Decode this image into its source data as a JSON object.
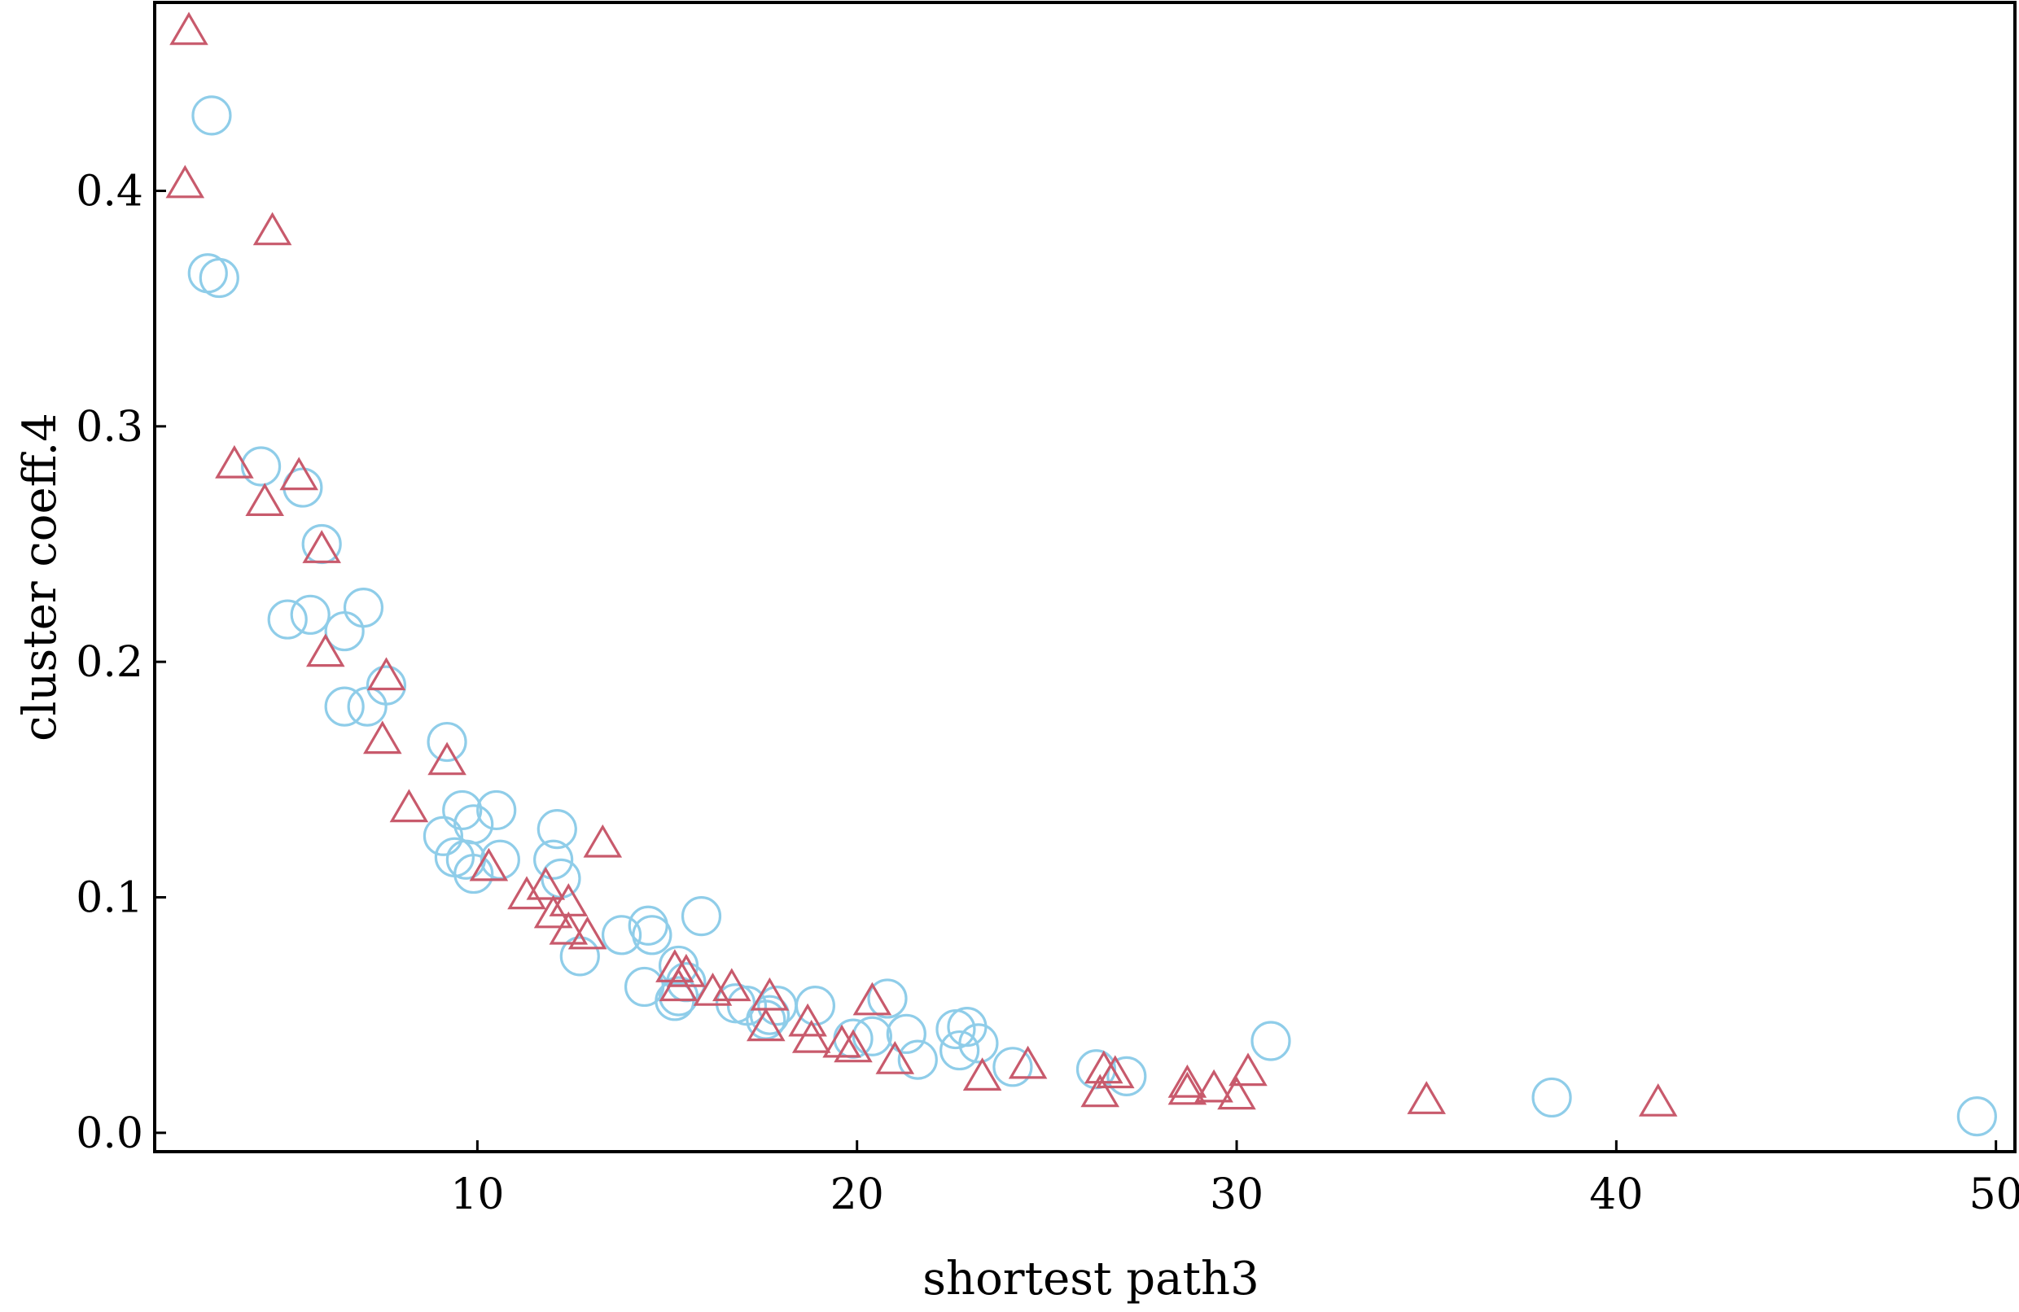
{
  "chart_data": {
    "type": "scatter",
    "xlabel": "shortest path3",
    "ylabel": "cluster coeff.4",
    "xlim": [
      1.5,
      50.5
    ],
    "ylim": [
      -0.008,
      0.48
    ],
    "xticks": [
      10,
      20,
      30,
      40,
      50
    ],
    "yticks": [
      0.0,
      0.1,
      0.2,
      0.3,
      0.4
    ],
    "ytick_labels": [
      "0.0",
      "0.1",
      "0.2",
      "0.3",
      "0.4"
    ],
    "grid": false,
    "series": [
      {
        "marker": "circle",
        "color": "#8fcde9",
        "points": [
          [
            3.0,
            0.432
          ],
          [
            2.9,
            0.365
          ],
          [
            3.2,
            0.363
          ],
          [
            4.3,
            0.283
          ],
          [
            5.4,
            0.274
          ],
          [
            5.9,
            0.25
          ],
          [
            5.0,
            0.218
          ],
          [
            5.6,
            0.22
          ],
          [
            6.5,
            0.213
          ],
          [
            7.0,
            0.223
          ],
          [
            6.5,
            0.181
          ],
          [
            7.1,
            0.181
          ],
          [
            7.6,
            0.19
          ],
          [
            9.2,
            0.166
          ],
          [
            9.1,
            0.126
          ],
          [
            9.6,
            0.137
          ],
          [
            9.9,
            0.131
          ],
          [
            9.4,
            0.117
          ],
          [
            9.7,
            0.116
          ],
          [
            9.9,
            0.11
          ],
          [
            10.5,
            0.137
          ],
          [
            10.6,
            0.116
          ],
          [
            12.1,
            0.129
          ],
          [
            12.0,
            0.116
          ],
          [
            12.2,
            0.108
          ],
          [
            13.8,
            0.084
          ],
          [
            14.5,
            0.088
          ],
          [
            14.6,
            0.084
          ],
          [
            12.7,
            0.075
          ],
          [
            14.4,
            0.062
          ],
          [
            15.9,
            0.092
          ],
          [
            15.3,
            0.071
          ],
          [
            15.5,
            0.064
          ],
          [
            15.3,
            0.058
          ],
          [
            15.2,
            0.056
          ],
          [
            16.8,
            0.055
          ],
          [
            17.1,
            0.054
          ],
          [
            17.9,
            0.054
          ],
          [
            17.7,
            0.05
          ],
          [
            17.6,
            0.048
          ],
          [
            18.9,
            0.054
          ],
          [
            19.9,
            0.04
          ],
          [
            20.4,
            0.041
          ],
          [
            20.8,
            0.057
          ],
          [
            21.3,
            0.042
          ],
          [
            21.6,
            0.031
          ],
          [
            22.6,
            0.044
          ],
          [
            22.9,
            0.045
          ],
          [
            23.2,
            0.038
          ],
          [
            22.7,
            0.035
          ],
          [
            24.1,
            0.028
          ],
          [
            26.3,
            0.027
          ],
          [
            27.1,
            0.024
          ],
          [
            30.9,
            0.039
          ],
          [
            38.3,
            0.015
          ],
          [
            49.5,
            0.007
          ]
        ]
      },
      {
        "marker": "triangle",
        "color": "#c85a6c",
        "points": [
          [
            2.4,
            0.468
          ],
          [
            2.3,
            0.403
          ],
          [
            4.6,
            0.383
          ],
          [
            3.6,
            0.284
          ],
          [
            4.4,
            0.268
          ],
          [
            5.3,
            0.279
          ],
          [
            5.9,
            0.248
          ],
          [
            6.0,
            0.204
          ],
          [
            7.6,
            0.194
          ],
          [
            7.5,
            0.167
          ],
          [
            9.2,
            0.158
          ],
          [
            8.2,
            0.138
          ],
          [
            10.3,
            0.113
          ],
          [
            11.3,
            0.101
          ],
          [
            11.8,
            0.105
          ],
          [
            12.4,
            0.098
          ],
          [
            12.0,
            0.093
          ],
          [
            12.4,
            0.086
          ],
          [
            12.9,
            0.084
          ],
          [
            13.3,
            0.123
          ],
          [
            15.2,
            0.07
          ],
          [
            15.5,
            0.068
          ],
          [
            15.3,
            0.062
          ],
          [
            16.2,
            0.06
          ],
          [
            16.7,
            0.062
          ],
          [
            17.7,
            0.058
          ],
          [
            17.6,
            0.045
          ],
          [
            18.7,
            0.047
          ],
          [
            18.8,
            0.04
          ],
          [
            19.6,
            0.038
          ],
          [
            19.9,
            0.036
          ],
          [
            20.4,
            0.056
          ],
          [
            21.0,
            0.031
          ],
          [
            23.3,
            0.024
          ],
          [
            24.5,
            0.029
          ],
          [
            26.5,
            0.027
          ],
          [
            26.4,
            0.017
          ],
          [
            26.8,
            0.025
          ],
          [
            28.7,
            0.021
          ],
          [
            28.7,
            0.018
          ],
          [
            29.4,
            0.019
          ],
          [
            30.0,
            0.016
          ],
          [
            30.3,
            0.026
          ],
          [
            35.0,
            0.014
          ],
          [
            41.1,
            0.013
          ]
        ]
      }
    ]
  }
}
